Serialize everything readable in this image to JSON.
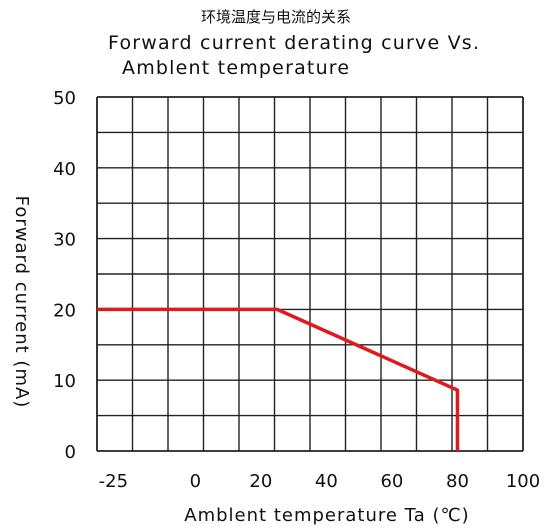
{
  "chart_data": {
    "type": "line",
    "title": "环境温度与电流的关系",
    "subtitle_line1": "Forward current derating curve Vs.",
    "subtitle_line2": "Amblent temperature",
    "xlabel": "Amblent temperature Ta (℃)",
    "ylabel": "Forward current (mA)",
    "xlim": [
      -30,
      100
    ],
    "ylim": [
      0,
      50
    ],
    "x_ticks": [
      "-25",
      "0",
      "20",
      "40",
      "60",
      "80",
      "100"
    ],
    "x_tick_values": [
      -25,
      0,
      20,
      40,
      60,
      80,
      100
    ],
    "y_ticks": [
      "50",
      "40",
      "30",
      "20",
      "10",
      "0"
    ],
    "y_tick_values": [
      50,
      40,
      30,
      20,
      10,
      0
    ],
    "grid": true,
    "series": [
      {
        "color": "#e0191e",
        "x": [
          -30,
          25,
          80,
          80
        ],
        "y": [
          20,
          20,
          8.6,
          0
        ]
      }
    ]
  }
}
